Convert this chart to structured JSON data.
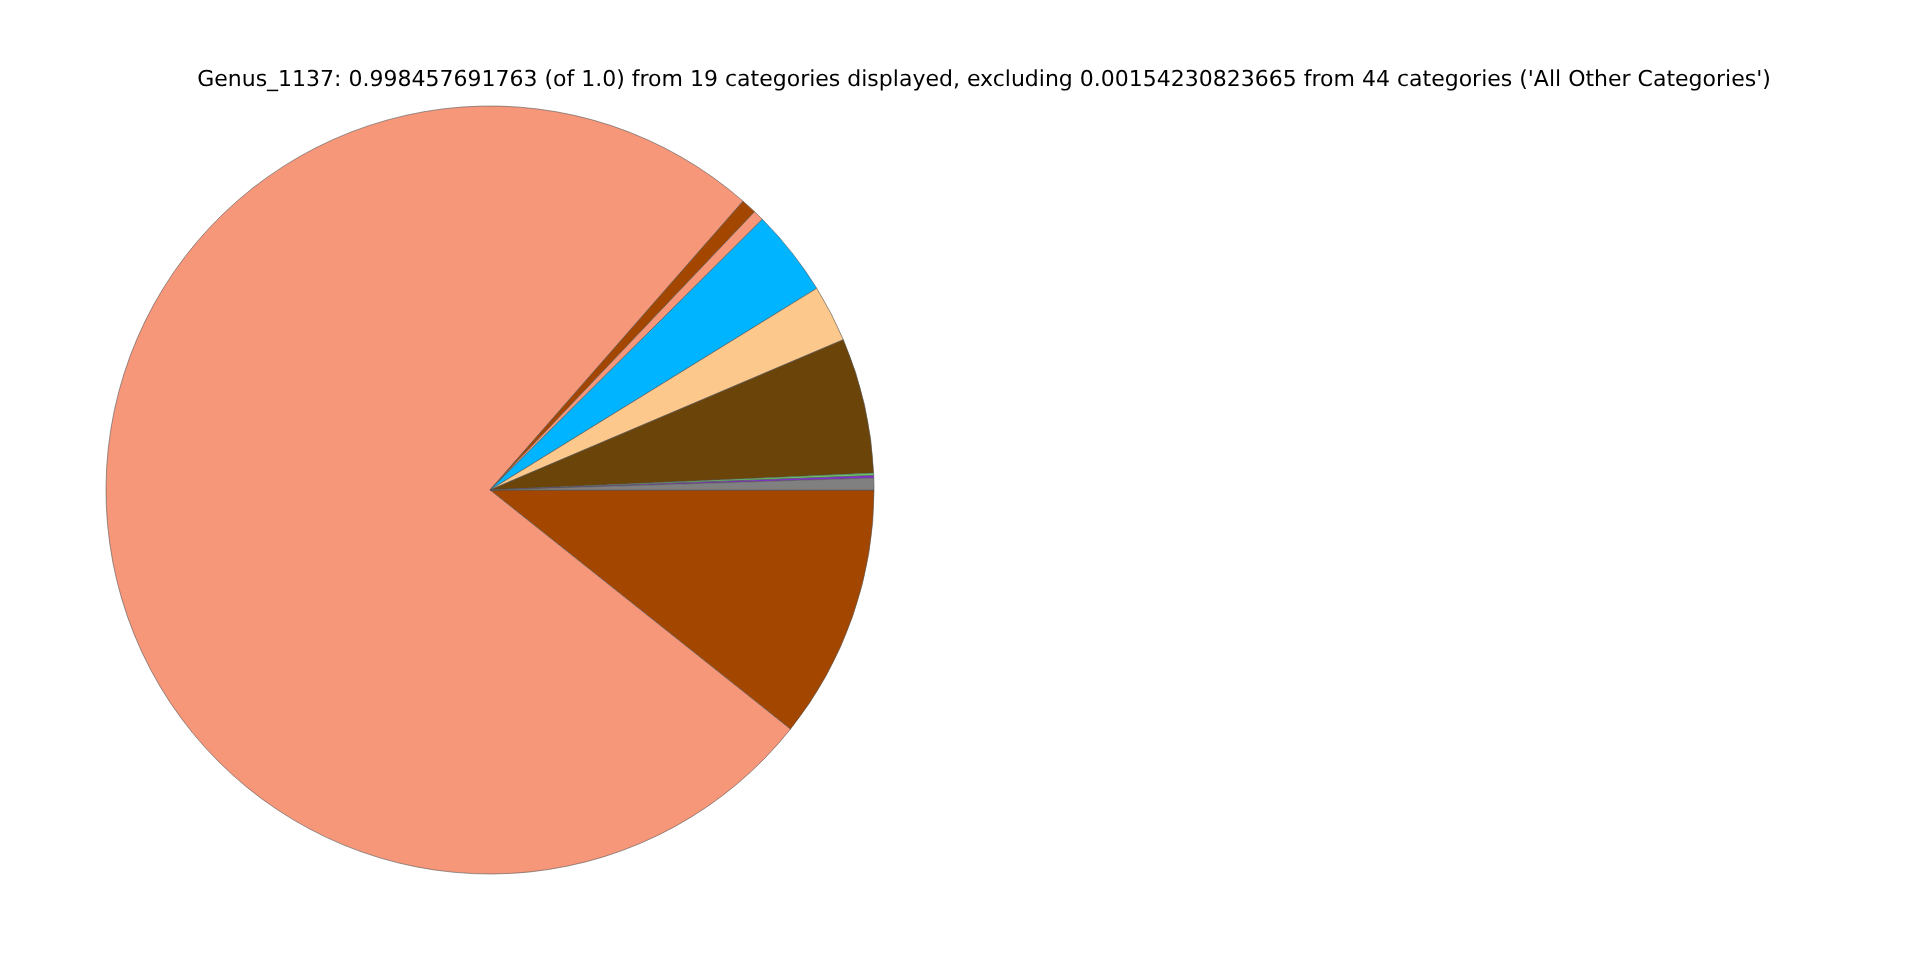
{
  "chart_data": {
    "type": "pie",
    "title": "Genus_1137: 0.998457691763 (of 1.0) from 19 categories displayed, excluding 0.00154230823665 from 44 categories ('All Other Categories')",
    "categories": [
      null,
      null,
      null,
      null,
      null,
      null,
      null,
      null,
      null,
      null
    ],
    "values": [
      10.7,
      75.75,
      0.65,
      0.45,
      3.65,
      2.4,
      5.7,
      0.1,
      0.1,
      0.5
    ],
    "colors": [
      "#a34700",
      "#f7977a",
      "#a34700",
      "#f7977a",
      "#00b4ff",
      "#fdc88b",
      "#6b440a",
      "#66cc66",
      "#8a2be2",
      "#808080"
    ],
    "legend": false
  }
}
